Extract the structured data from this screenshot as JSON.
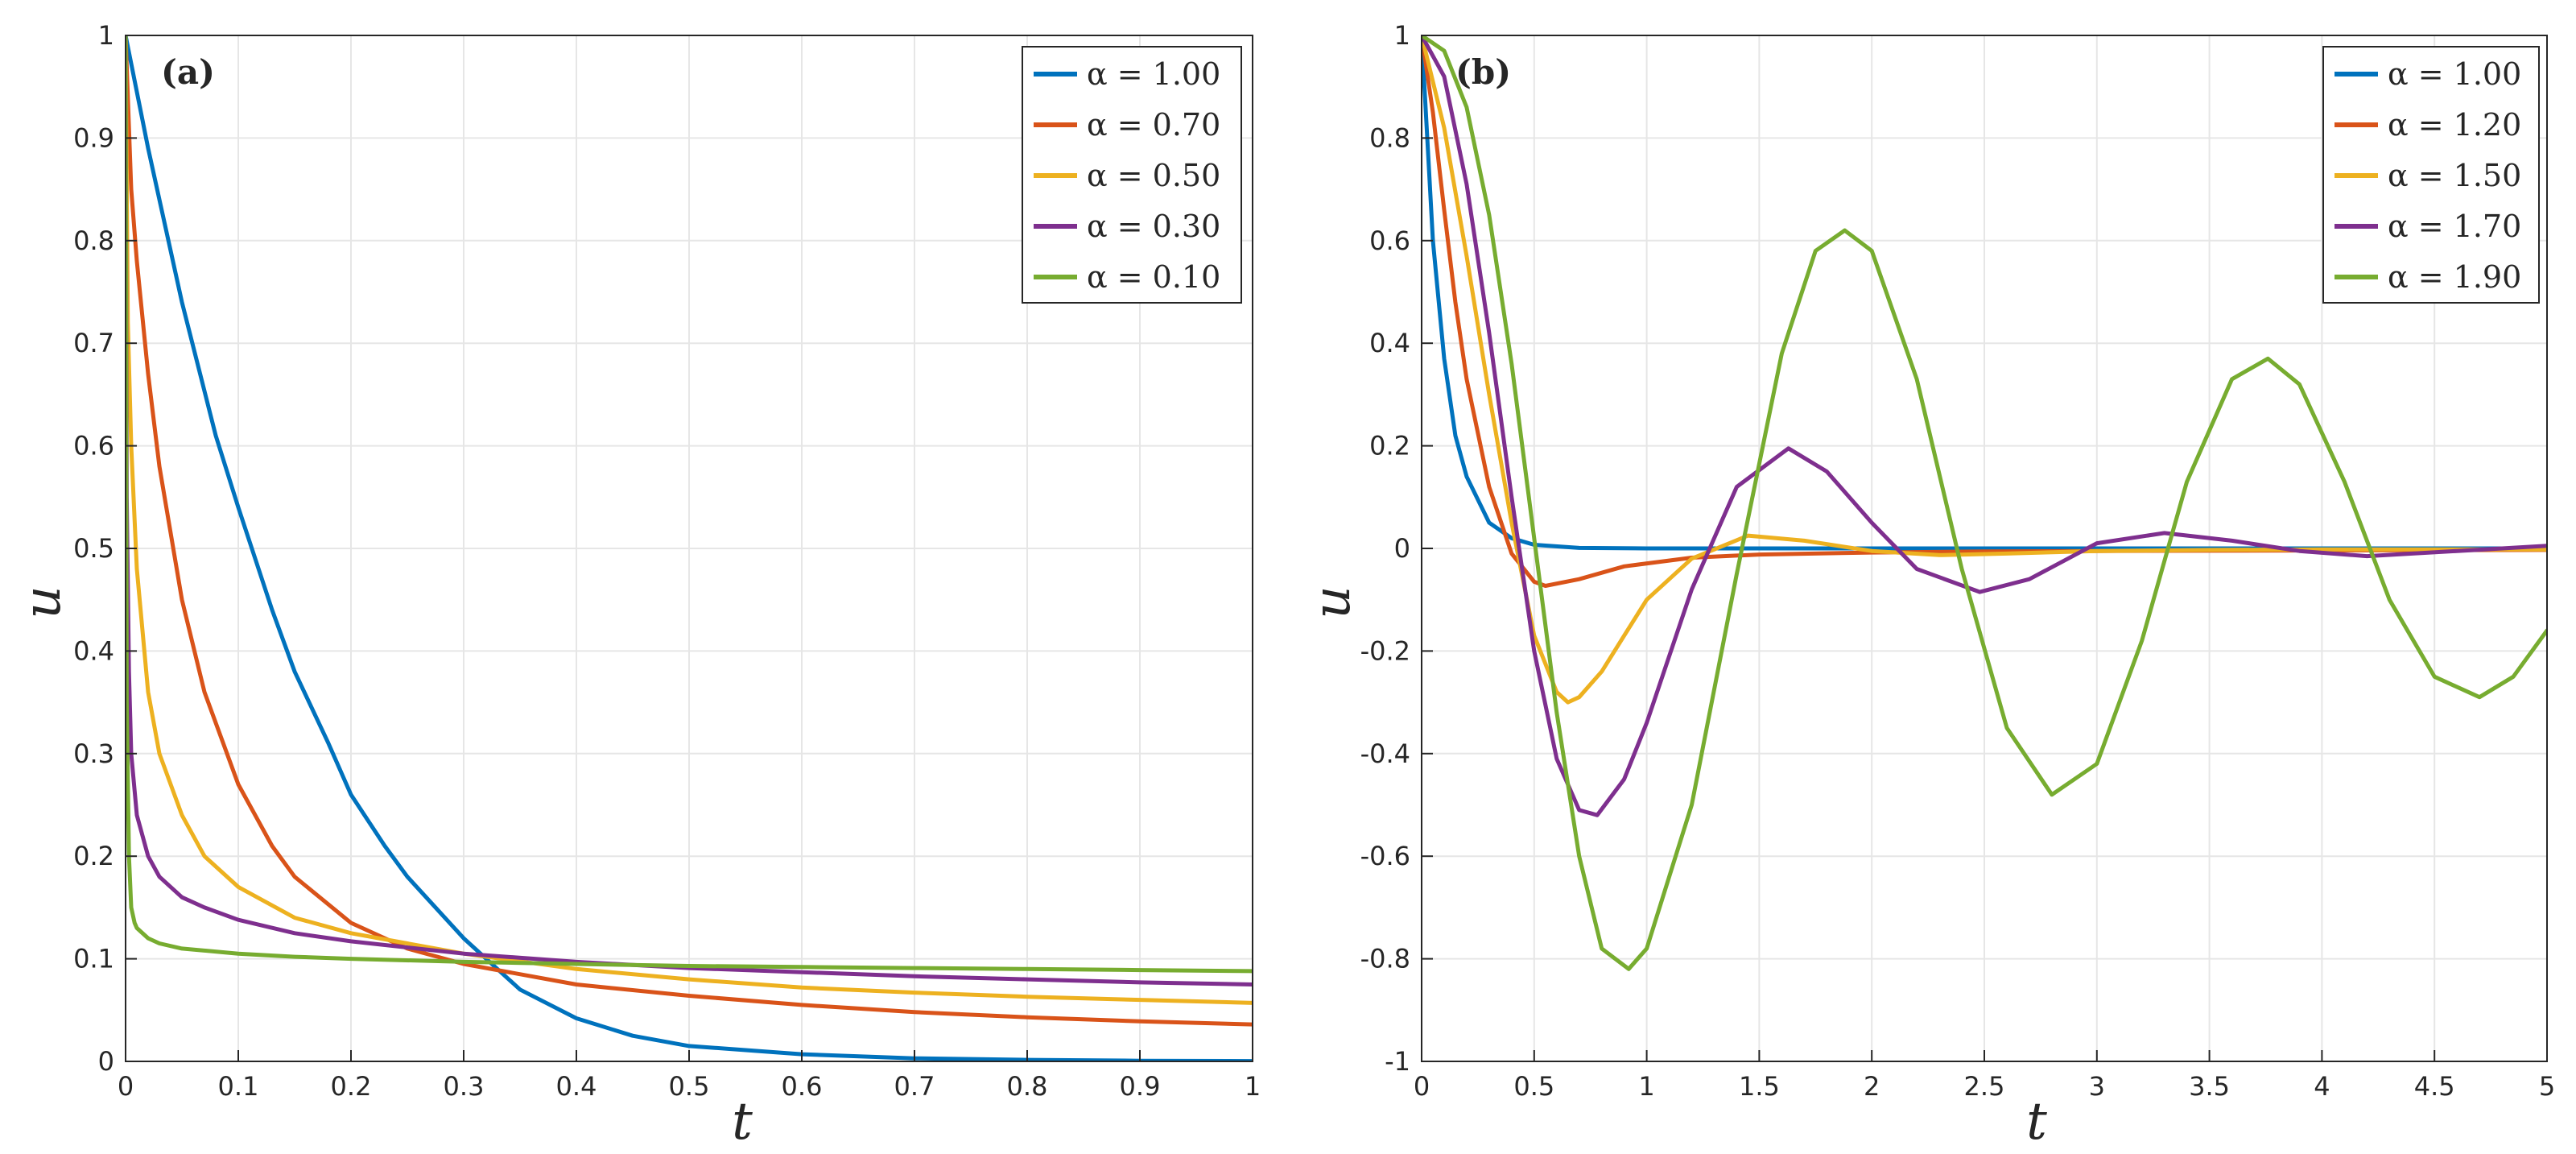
{
  "chart_data": [
    {
      "type": "line",
      "panel_label": "(a)",
      "xlabel": "t",
      "ylabel": "u",
      "xlim": [
        0,
        1
      ],
      "ylim": [
        0,
        1
      ],
      "xticks": [
        "0",
        "0.1",
        "0.2",
        "0.3",
        "0.4",
        "0.5",
        "0.6",
        "0.7",
        "0.8",
        "0.9",
        "1"
      ],
      "yticks": [
        "0",
        "0.1",
        "0.2",
        "0.3",
        "0.4",
        "0.5",
        "0.6",
        "0.7",
        "0.8",
        "0.9",
        "1"
      ],
      "grid": true,
      "legend_position": "top-right",
      "series": [
        {
          "name": "α = 1.00",
          "color": "#0072BD",
          "x": [
            0,
            0.02,
            0.05,
            0.08,
            0.1,
            0.13,
            0.15,
            0.18,
            0.2,
            0.23,
            0.25,
            0.3,
            0.35,
            0.4,
            0.45,
            0.5,
            0.6,
            0.7,
            0.8,
            0.9,
            1.0
          ],
          "y": [
            1.0,
            0.89,
            0.74,
            0.61,
            0.54,
            0.44,
            0.38,
            0.31,
            0.26,
            0.21,
            0.18,
            0.12,
            0.07,
            0.042,
            0.025,
            0.015,
            0.007,
            0.003,
            0.0015,
            0.0006,
            0.0003
          ]
        },
        {
          "name": "α = 0.70",
          "color": "#D95319",
          "x": [
            0,
            0.005,
            0.01,
            0.02,
            0.03,
            0.05,
            0.07,
            0.1,
            0.13,
            0.15,
            0.2,
            0.25,
            0.3,
            0.4,
            0.5,
            0.6,
            0.7,
            0.8,
            0.9,
            1.0
          ],
          "y": [
            1.0,
            0.85,
            0.78,
            0.67,
            0.58,
            0.45,
            0.36,
            0.27,
            0.21,
            0.18,
            0.135,
            0.11,
            0.095,
            0.075,
            0.064,
            0.055,
            0.048,
            0.043,
            0.039,
            0.036
          ]
        },
        {
          "name": "α = 0.50",
          "color": "#EDB120",
          "x": [
            0,
            0.002,
            0.005,
            0.01,
            0.02,
            0.03,
            0.05,
            0.07,
            0.1,
            0.15,
            0.2,
            0.25,
            0.3,
            0.4,
            0.5,
            0.6,
            0.7,
            0.8,
            0.9,
            1.0
          ],
          "y": [
            1.0,
            0.72,
            0.6,
            0.48,
            0.36,
            0.3,
            0.24,
            0.2,
            0.17,
            0.14,
            0.125,
            0.115,
            0.105,
            0.09,
            0.08,
            0.072,
            0.067,
            0.063,
            0.06,
            0.057
          ]
        },
        {
          "name": "α = 0.30",
          "color": "#7E2F8E",
          "x": [
            0,
            0.001,
            0.003,
            0.005,
            0.01,
            0.02,
            0.03,
            0.05,
            0.07,
            0.1,
            0.15,
            0.2,
            0.3,
            0.4,
            0.5,
            0.6,
            0.7,
            0.8,
            0.9,
            1.0
          ],
          "y": [
            1.0,
            0.55,
            0.38,
            0.3,
            0.24,
            0.2,
            0.18,
            0.16,
            0.15,
            0.138,
            0.125,
            0.117,
            0.105,
            0.097,
            0.091,
            0.087,
            0.083,
            0.08,
            0.077,
            0.075
          ]
        },
        {
          "name": "α = 0.10",
          "color": "#77AC30",
          "x": [
            0,
            0.001,
            0.003,
            0.005,
            0.008,
            0.01,
            0.02,
            0.03,
            0.05,
            0.1,
            0.15,
            0.2,
            0.3,
            0.4,
            0.5,
            0.6,
            0.7,
            0.8,
            0.9,
            1.0
          ],
          "y": [
            1.0,
            0.35,
            0.2,
            0.15,
            0.135,
            0.13,
            0.12,
            0.115,
            0.11,
            0.105,
            0.102,
            0.1,
            0.097,
            0.095,
            0.093,
            0.092,
            0.091,
            0.09,
            0.089,
            0.088
          ]
        }
      ]
    },
    {
      "type": "line",
      "panel_label": "(b)",
      "xlabel": "t",
      "ylabel": "u",
      "xlim": [
        0,
        5
      ],
      "ylim": [
        -1,
        1
      ],
      "xticks": [
        "0",
        "0.5",
        "1",
        "1.5",
        "2",
        "2.5",
        "3",
        "3.5",
        "4",
        "4.5",
        "5"
      ],
      "yticks": [
        "-1",
        "-0.8",
        "-0.6",
        "-0.4",
        "-0.2",
        "0",
        "0.2",
        "0.4",
        "0.6",
        "0.8",
        "1"
      ],
      "grid": true,
      "legend_position": "top-right",
      "series": [
        {
          "name": "α = 1.00",
          "color": "#0072BD",
          "x": [
            0,
            0.05,
            0.1,
            0.15,
            0.2,
            0.3,
            0.4,
            0.5,
            0.7,
            1.0,
            2.0,
            3.0,
            4.0,
            5.0
          ],
          "y": [
            1.0,
            0.6,
            0.37,
            0.22,
            0.14,
            0.05,
            0.02,
            0.007,
            0.001,
            0.0,
            0.0,
            0.0,
            0.0,
            0.0
          ]
        },
        {
          "name": "α = 1.20",
          "color": "#D95319",
          "x": [
            0,
            0.05,
            0.1,
            0.15,
            0.2,
            0.3,
            0.4,
            0.5,
            0.55,
            0.7,
            0.9,
            1.2,
            1.5,
            2.0,
            2.5,
            3.0,
            4.0,
            5.0
          ],
          "y": [
            1.0,
            0.85,
            0.66,
            0.48,
            0.33,
            0.12,
            -0.01,
            -0.065,
            -0.073,
            -0.06,
            -0.035,
            -0.018,
            -0.012,
            -0.008,
            -0.006,
            -0.005,
            -0.004,
            -0.003
          ]
        },
        {
          "name": "α = 1.50",
          "color": "#EDB120",
          "x": [
            0,
            0.1,
            0.2,
            0.3,
            0.4,
            0.5,
            0.6,
            0.65,
            0.7,
            0.8,
            0.9,
            1.0,
            1.2,
            1.45,
            1.7,
            2.0,
            2.3,
            2.6,
            3.0,
            3.5,
            4.0,
            4.5,
            5.0
          ],
          "y": [
            1.0,
            0.82,
            0.57,
            0.3,
            0.05,
            -0.17,
            -0.28,
            -0.3,
            -0.29,
            -0.24,
            -0.17,
            -0.1,
            -0.02,
            0.025,
            0.015,
            -0.005,
            -0.013,
            -0.01,
            -0.005,
            -0.003,
            -0.002,
            -0.002,
            -0.002
          ]
        },
        {
          "name": "α = 1.70",
          "color": "#7E2F8E",
          "x": [
            0,
            0.1,
            0.2,
            0.3,
            0.4,
            0.5,
            0.6,
            0.7,
            0.78,
            0.9,
            1.0,
            1.2,
            1.4,
            1.63,
            1.8,
            2.0,
            2.2,
            2.48,
            2.7,
            3.0,
            3.3,
            3.6,
            3.9,
            4.2,
            4.6,
            5.0
          ],
          "y": [
            1.0,
            0.92,
            0.71,
            0.42,
            0.1,
            -0.2,
            -0.41,
            -0.51,
            -0.52,
            -0.45,
            -0.34,
            -0.08,
            0.12,
            0.195,
            0.15,
            0.05,
            -0.04,
            -0.085,
            -0.06,
            0.01,
            0.03,
            0.015,
            -0.005,
            -0.015,
            -0.005,
            0.005
          ]
        },
        {
          "name": "α = 1.90",
          "color": "#77AC30",
          "x": [
            0,
            0.1,
            0.2,
            0.3,
            0.4,
            0.5,
            0.6,
            0.7,
            0.8,
            0.92,
            1.0,
            1.2,
            1.4,
            1.6,
            1.75,
            1.88,
            2.0,
            2.2,
            2.4,
            2.6,
            2.8,
            3.0,
            3.2,
            3.4,
            3.6,
            3.76,
            3.9,
            4.1,
            4.3,
            4.5,
            4.7,
            4.85,
            5.0
          ],
          "y": [
            1.0,
            0.97,
            0.86,
            0.65,
            0.36,
            0.02,
            -0.32,
            -0.6,
            -0.78,
            -0.82,
            -0.78,
            -0.5,
            -0.05,
            0.38,
            0.58,
            0.62,
            0.58,
            0.33,
            -0.04,
            -0.35,
            -0.48,
            -0.42,
            -0.18,
            0.13,
            0.33,
            0.37,
            0.32,
            0.13,
            -0.1,
            -0.25,
            -0.29,
            -0.25,
            -0.16
          ]
        }
      ]
    }
  ]
}
